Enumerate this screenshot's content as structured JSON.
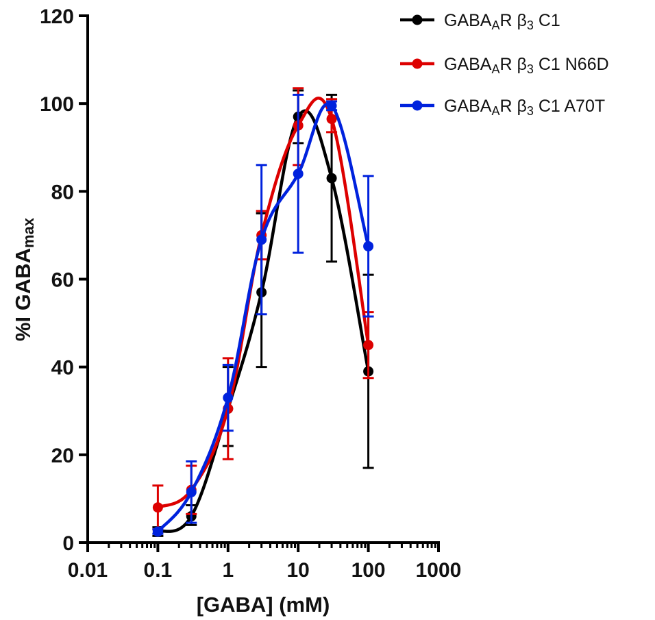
{
  "chart_data": {
    "type": "scatter",
    "xlabel": "[GABA] (mM)",
    "ylabel": {
      "main": "%I GABA",
      "sub": "max"
    },
    "xscale": "log",
    "xlim": [
      0.01,
      1000
    ],
    "ylim": [
      0,
      120
    ],
    "xticks": [
      0.01,
      0.1,
      1,
      10,
      100,
      1000
    ],
    "xtick_labels": [
      "0.01",
      "0.1",
      "1",
      "10",
      "100",
      "1000"
    ],
    "yticks": [
      0,
      20,
      40,
      60,
      80,
      100,
      120
    ],
    "ytick_labels": [
      "0",
      "20",
      "40",
      "60",
      "80",
      "100",
      "120"
    ],
    "grid": false,
    "legend_position": "top-right",
    "series": [
      {
        "name": {
          "pre": "GABA",
          "sub": "A",
          "mid": "R β",
          "sub2": "3",
          "post": " C1"
        },
        "color": "#000000",
        "x": [
          0.1,
          0.3,
          1,
          3,
          10,
          30,
          100
        ],
        "y": [
          2.5,
          6,
          30.5,
          57,
          97,
          83,
          39
        ],
        "err_upper": [
          3.5,
          8.5,
          40,
          75,
          103,
          102,
          61
        ],
        "err_lower": [
          1.5,
          4,
          22,
          40,
          91,
          64,
          17
        ]
      },
      {
        "name": {
          "pre": "GABA",
          "sub": "A",
          "mid": "R β",
          "sub2": "3",
          "post": " C1 N66D"
        },
        "color": "#dd0000",
        "x": [
          0.1,
          0.3,
          1,
          3,
          10,
          30,
          100
        ],
        "y": [
          8,
          12,
          30.5,
          70,
          95,
          96.5,
          45
        ],
        "err_upper": [
          13,
          17.5,
          42,
          75.5,
          103.5,
          101,
          52.5
        ],
        "err_lower": [
          3,
          6.5,
          19,
          64.5,
          86,
          93.5,
          37.5
        ]
      },
      {
        "name": {
          "pre": "GABA",
          "sub": "A",
          "mid": "R β",
          "sub2": "3",
          "post": " C1 A70T"
        },
        "color": "#0022dd",
        "x": [
          0.1,
          0.3,
          1,
          3,
          10,
          30,
          100
        ],
        "y": [
          2.5,
          11.5,
          33,
          69,
          84,
          99.5,
          67.5
        ],
        "err_upper": [
          3,
          18.5,
          40.5,
          86,
          102,
          100.5,
          83.5
        ],
        "err_lower": [
          2,
          4.5,
          25.5,
          52,
          66,
          98.5,
          51.5
        ]
      }
    ]
  }
}
